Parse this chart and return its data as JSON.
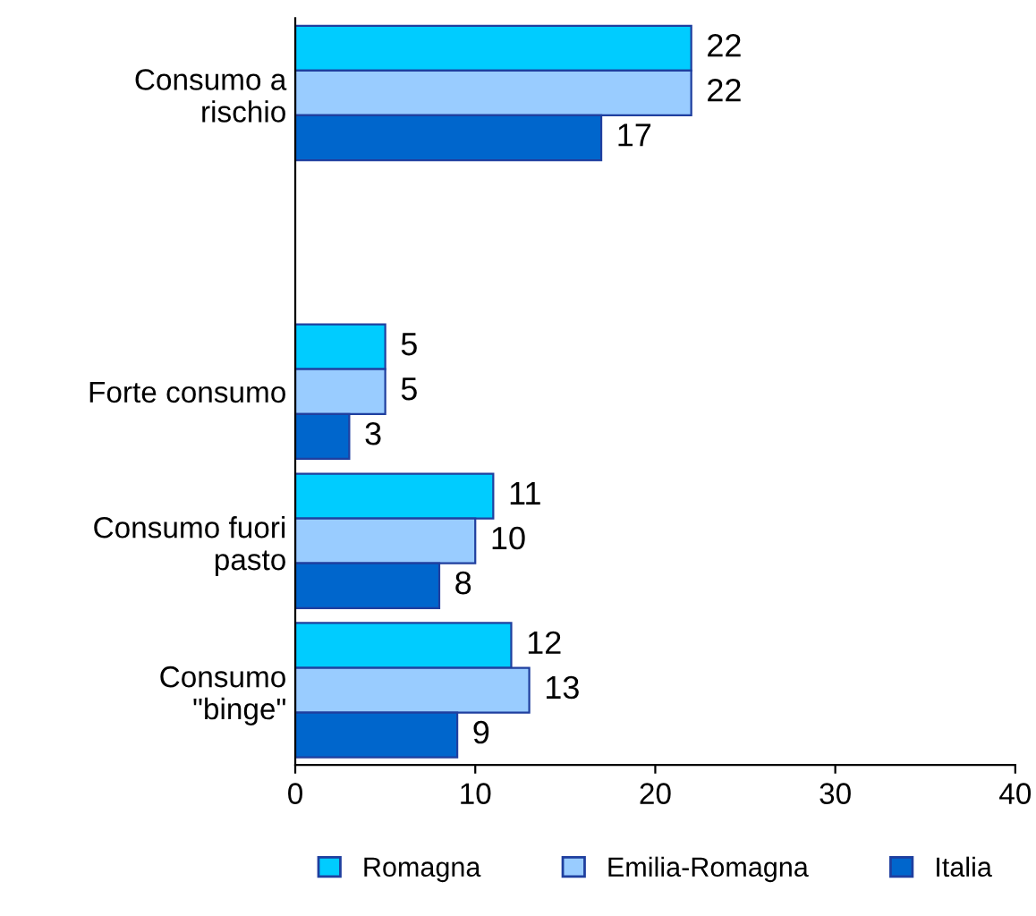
{
  "chart_data": {
    "type": "bar",
    "orientation": "horizontal",
    "categories": [
      "Consumo a\nrischio",
      null,
      "Forte consumo",
      "Consumo fuori\npasto",
      "Consumo\n\"binge\""
    ],
    "series": [
      {
        "name": "Romagna",
        "color": "#00ccff",
        "values": [
          22,
          null,
          5,
          11,
          12
        ]
      },
      {
        "name": "Emilia-Romagna",
        "color": "#99ccff",
        "values": [
          22,
          null,
          5,
          10,
          13
        ]
      },
      {
        "name": "Italia",
        "color": "#0066cc",
        "values": [
          17,
          null,
          3,
          8,
          9
        ]
      }
    ],
    "xlim": [
      0,
      40
    ],
    "xticks": [
      0,
      10,
      20,
      30,
      40
    ],
    "data_labels": true,
    "grid": false,
    "legend": "bottom"
  }
}
